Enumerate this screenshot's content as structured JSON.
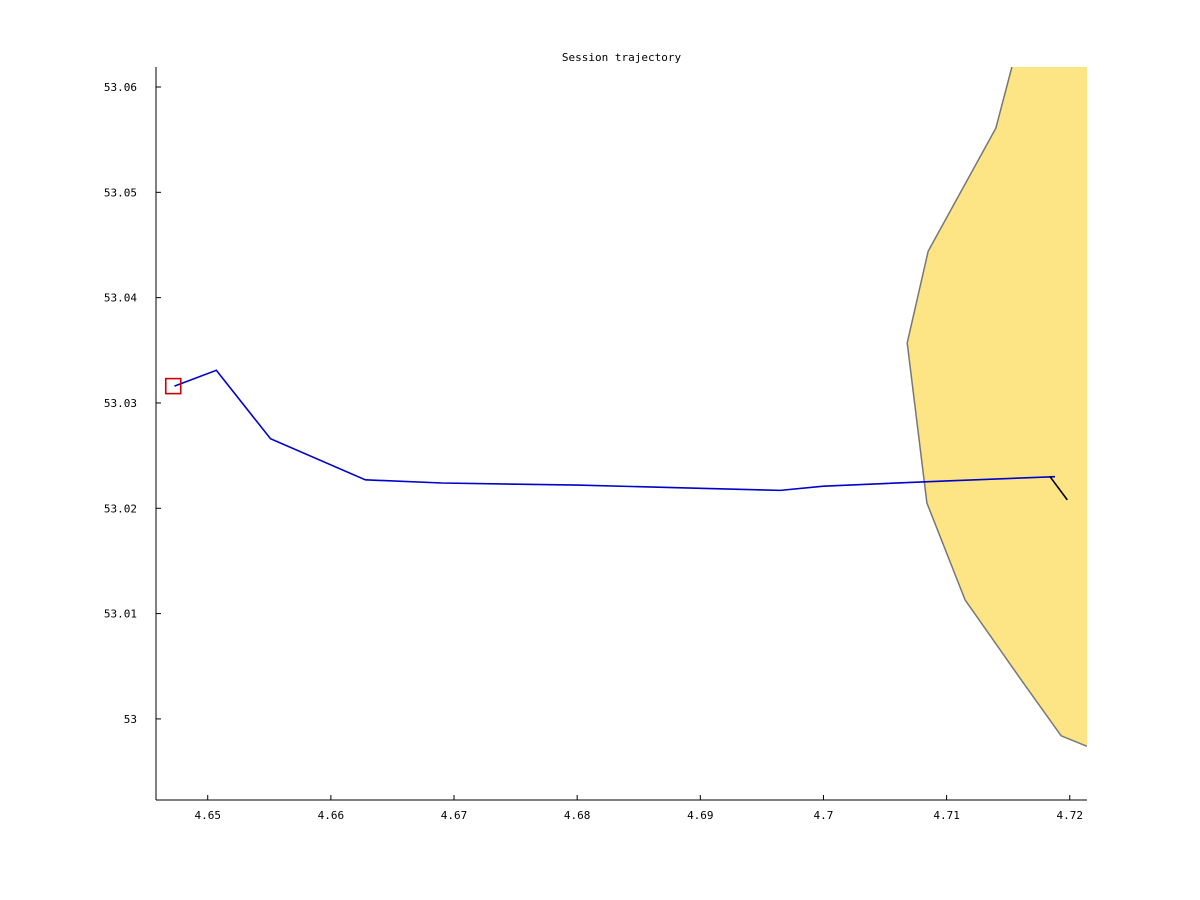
{
  "chart_data": {
    "type": "line",
    "title": "Session trajectory",
    "xlabel": "",
    "ylabel": "",
    "xlim": [
      4.6458,
      4.7214
    ],
    "ylim": [
      52.9923,
      53.0619
    ],
    "x_ticks": [
      "4.65",
      "4.66",
      "4.67",
      "4.68",
      "4.69",
      "4.7",
      "4.71",
      "4.72"
    ],
    "x_tick_values": [
      4.65,
      4.66,
      4.67,
      4.68,
      4.69,
      4.7,
      4.71,
      4.72
    ],
    "y_ticks": [
      "53",
      "53.01",
      "53.02",
      "53.03",
      "53.04",
      "53.05",
      "53.06"
    ],
    "y_tick_values": [
      53.0,
      53.01,
      53.02,
      53.03,
      53.04,
      53.05,
      53.06
    ],
    "grid": false,
    "series": [
      {
        "kind": "line",
        "color": "#0000cc",
        "x": [
          4.6473,
          4.6507,
          4.6551,
          4.6628,
          4.669,
          4.68,
          4.69,
          4.6965,
          4.7,
          4.71,
          4.7188
        ],
        "y": [
          53.0316,
          53.0331,
          53.0266,
          53.0227,
          53.0224,
          53.0222,
          53.0219,
          53.0217,
          53.0221,
          53.0226,
          53.023
        ]
      },
      {
        "kind": "line",
        "color": "#000000",
        "x": [
          4.7184,
          4.7198
        ],
        "y": [
          53.023,
          53.0208
        ]
      }
    ],
    "region": {
      "fill": "#fde484",
      "stroke": "#777777",
      "x": [
        4.7153,
        4.714,
        4.7085,
        4.7068,
        4.7084,
        4.7115,
        4.716,
        4.7193,
        4.7214,
        4.7214
      ],
      "y": [
        53.0619,
        53.0561,
        53.0444,
        53.0357,
        53.0205,
        53.0113,
        53.0038,
        52.9984,
        52.9974,
        53.0619
      ]
    },
    "start_marker": {
      "shape": "square",
      "color": "#cc0000",
      "x": 4.6472,
      "y": 53.0316
    }
  }
}
